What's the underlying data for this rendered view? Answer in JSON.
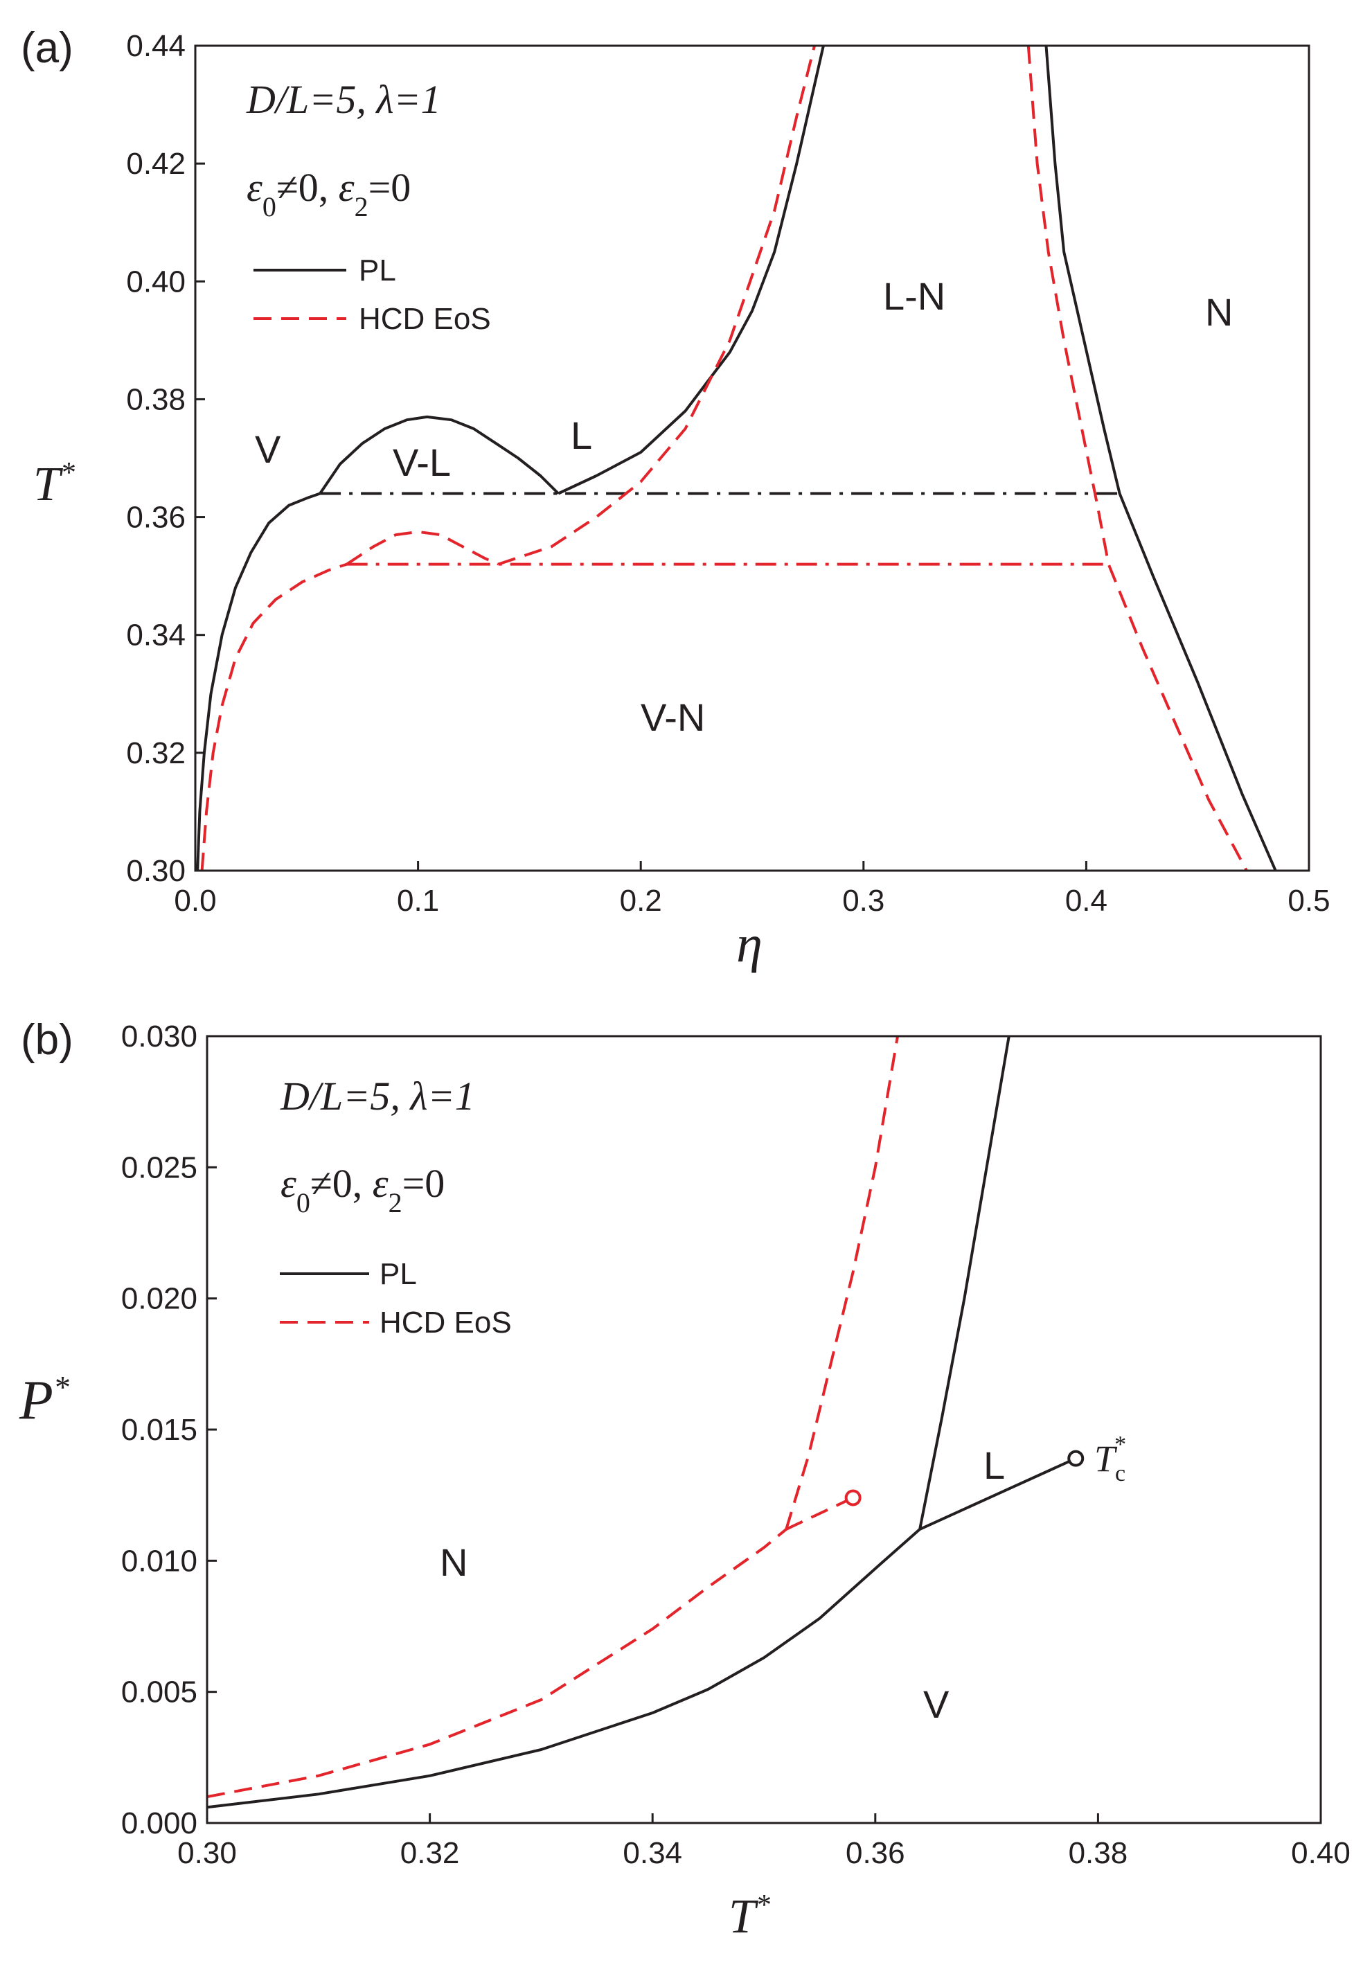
{
  "colors": {
    "pl": "#231f20",
    "hcd": "#e3242b",
    "axis": "#231f20"
  },
  "chart_data": [
    {
      "panel": "(a)",
      "type": "line",
      "xlabel": "η",
      "ylabel": "T",
      "ylabel_sup": "*",
      "xlim": [
        0.0,
        0.5
      ],
      "ylim": [
        0.3,
        0.44
      ],
      "xticks": [
        "0.0",
        "0.1",
        "0.2",
        "0.3",
        "0.4",
        "0.5"
      ],
      "yticks": [
        "0.30",
        "0.32",
        "0.34",
        "0.36",
        "0.38",
        "0.40",
        "0.42",
        "0.44"
      ],
      "annotation": {
        "line1": "D/L=5, λ=1",
        "eps0": "ε",
        "eps0_sub": "0",
        "neq": "≠0, ",
        "eps2": "ε",
        "eps2_sub": "2",
        "eq": "=0"
      },
      "legend": [
        {
          "label": "PL",
          "style": "solid"
        },
        {
          "label": "HCD EoS",
          "style": "dashed"
        }
      ],
      "regions": [
        "V",
        "V-L",
        "L",
        "L-N",
        "N",
        "V-N"
      ],
      "series": [
        {
          "name": "PL vapor branch",
          "style": "solid",
          "color": "pl",
          "x": [
            0.001,
            0.002,
            0.004,
            0.007,
            0.012,
            0.018,
            0.025,
            0.033,
            0.042,
            0.05,
            0.056
          ],
          "y": [
            0.3,
            0.31,
            0.32,
            0.33,
            0.34,
            0.348,
            0.354,
            0.359,
            0.362,
            0.3632,
            0.364
          ]
        },
        {
          "name": "PL V-L coexistence",
          "style": "solid",
          "color": "pl",
          "x": [
            0.056,
            0.065,
            0.075,
            0.085,
            0.095,
            0.104,
            0.115,
            0.125,
            0.135,
            0.145,
            0.155,
            0.163
          ],
          "y": [
            0.364,
            0.369,
            0.3725,
            0.375,
            0.3765,
            0.377,
            0.3765,
            0.375,
            0.3725,
            0.37,
            0.367,
            0.364
          ]
        },
        {
          "name": "PL liquid-nematic (low eta)",
          "style": "solid",
          "color": "pl",
          "x": [
            0.163,
            0.18,
            0.2,
            0.22,
            0.24,
            0.25,
            0.26,
            0.27,
            0.282
          ],
          "y": [
            0.364,
            0.367,
            0.371,
            0.378,
            0.388,
            0.395,
            0.405,
            0.42,
            0.44
          ]
        },
        {
          "name": "PL nematic boundary",
          "style": "solid",
          "color": "pl",
          "x": [
            0.382,
            0.386,
            0.39,
            0.396,
            0.402,
            0.408,
            0.415,
            0.43,
            0.45,
            0.47,
            0.485
          ],
          "y": [
            0.44,
            0.42,
            0.405,
            0.395,
            0.385,
            0.375,
            0.364,
            0.35,
            0.332,
            0.313,
            0.3
          ]
        },
        {
          "name": "PL triple line",
          "style": "dashdot",
          "color": "pl",
          "x": [
            0.056,
            0.415
          ],
          "y": [
            0.364,
            0.364
          ]
        },
        {
          "name": "HCD vapor branch",
          "style": "dashed",
          "color": "hcd",
          "x": [
            0.003,
            0.005,
            0.008,
            0.012,
            0.018,
            0.026,
            0.036,
            0.048,
            0.06,
            0.068
          ],
          "y": [
            0.3,
            0.31,
            0.32,
            0.328,
            0.336,
            0.342,
            0.346,
            0.349,
            0.351,
            0.352
          ]
        },
        {
          "name": "HCD V-L coexistence",
          "style": "dashed",
          "color": "hcd",
          "x": [
            0.068,
            0.08,
            0.09,
            0.1,
            0.11,
            0.12,
            0.13,
            0.136
          ],
          "y": [
            0.352,
            0.355,
            0.357,
            0.3575,
            0.357,
            0.355,
            0.353,
            0.352
          ]
        },
        {
          "name": "HCD liquid-nematic (low eta)",
          "style": "dashed",
          "color": "hcd",
          "x": [
            0.136,
            0.16,
            0.18,
            0.2,
            0.22,
            0.24,
            0.26,
            0.27,
            0.278
          ],
          "y": [
            0.352,
            0.355,
            0.36,
            0.366,
            0.375,
            0.39,
            0.412,
            0.428,
            0.44
          ]
        },
        {
          "name": "HCD nematic boundary",
          "style": "dashed",
          "color": "hcd",
          "x": [
            0.374,
            0.378,
            0.383,
            0.39,
            0.398,
            0.405,
            0.41,
            0.425,
            0.44,
            0.455,
            0.472
          ],
          "y": [
            0.44,
            0.42,
            0.405,
            0.39,
            0.375,
            0.362,
            0.352,
            0.338,
            0.325,
            0.312,
            0.3
          ]
        },
        {
          "name": "HCD triple line",
          "style": "dashdot",
          "color": "hcd",
          "x": [
            0.068,
            0.41
          ],
          "y": [
            0.352,
            0.352
          ]
        }
      ]
    },
    {
      "panel": "(b)",
      "type": "line",
      "xlabel": "T",
      "xlabel_sup": "*",
      "ylabel": "P",
      "ylabel_sup": "*",
      "xlim": [
        0.3,
        0.4
      ],
      "ylim": [
        0.0,
        0.03
      ],
      "xticks": [
        "0.30",
        "0.32",
        "0.34",
        "0.36",
        "0.38",
        "0.40"
      ],
      "yticks": [
        "0.000",
        "0.005",
        "0.010",
        "0.015",
        "0.020",
        "0.025",
        "0.030"
      ],
      "annotation": {
        "line1": "D/L=5, λ=1",
        "eps0": "ε",
        "eps0_sub": "0",
        "neq": "≠0, ",
        "eps2": "ε",
        "eps2_sub": "2",
        "eq": "=0"
      },
      "legend": [
        {
          "label": "PL",
          "style": "solid"
        },
        {
          "label": "HCD EoS",
          "style": "dashed"
        }
      ],
      "regions": [
        "N",
        "L",
        "V"
      ],
      "critical_label": {
        "main": "T",
        "sub": "c",
        "sup": "*"
      },
      "critical_points": [
        {
          "series": "PL",
          "x": 0.378,
          "y": 0.0139
        },
        {
          "series": "HCD EoS",
          "x": 0.358,
          "y": 0.0124
        }
      ],
      "series": [
        {
          "name": "PL N-V",
          "style": "solid",
          "color": "pl",
          "x": [
            0.3,
            0.31,
            0.32,
            0.33,
            0.34,
            0.345,
            0.35,
            0.355,
            0.36,
            0.364
          ],
          "y": [
            0.0006,
            0.0011,
            0.0018,
            0.0028,
            0.0042,
            0.0051,
            0.0063,
            0.0078,
            0.0097,
            0.0112
          ]
        },
        {
          "name": "PL N-L",
          "style": "solid",
          "color": "pl",
          "x": [
            0.364,
            0.366,
            0.368,
            0.37,
            0.372
          ],
          "y": [
            0.0112,
            0.0155,
            0.02,
            0.025,
            0.03
          ]
        },
        {
          "name": "PL V-L",
          "style": "solid",
          "color": "pl",
          "x": [
            0.364,
            0.378
          ],
          "y": [
            0.0112,
            0.0139
          ]
        },
        {
          "name": "HCD N-V",
          "style": "dashed",
          "color": "hcd",
          "x": [
            0.3,
            0.31,
            0.32,
            0.33,
            0.34,
            0.345,
            0.35,
            0.352
          ],
          "y": [
            0.001,
            0.0018,
            0.003,
            0.0047,
            0.0074,
            0.009,
            0.0105,
            0.0112
          ]
        },
        {
          "name": "HCD N-L",
          "style": "dashed",
          "color": "hcd",
          "x": [
            0.352,
            0.354,
            0.356,
            0.358,
            0.36,
            0.362
          ],
          "y": [
            0.0112,
            0.014,
            0.0175,
            0.021,
            0.025,
            0.03
          ]
        },
        {
          "name": "HCD V-L",
          "style": "dashed",
          "color": "hcd",
          "x": [
            0.352,
            0.358
          ],
          "y": [
            0.0112,
            0.0124
          ]
        }
      ]
    }
  ]
}
